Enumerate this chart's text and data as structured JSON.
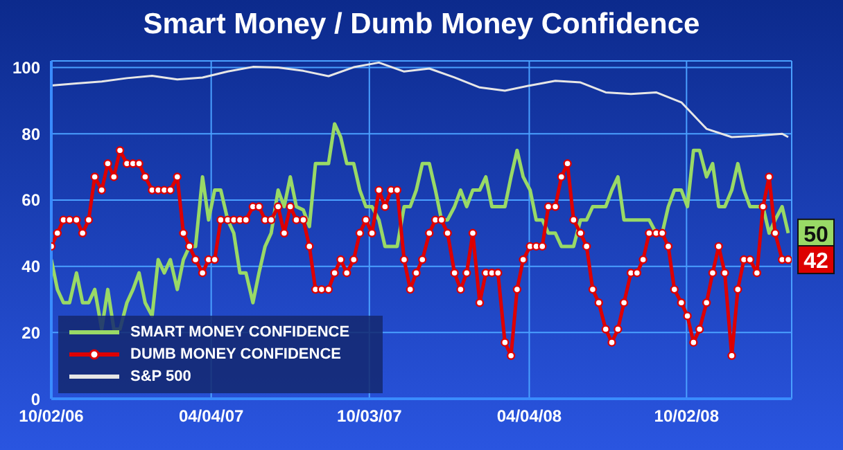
{
  "chart_data": {
    "type": "line",
    "title": "Smart Money / Dumb Money Confidence",
    "x": [
      "2006-10-02",
      "2006-10-09",
      "2006-10-16",
      "2006-10-23",
      "2006-10-31",
      "2006-11-07",
      "2006-11-14",
      "2006-11-21",
      "2006-11-29",
      "2006-12-06",
      "2006-12-13",
      "2006-12-20",
      "2006-12-28",
      "2007-01-04",
      "2007-01-11",
      "2007-01-18",
      "2007-01-26",
      "2007-02-02",
      "2007-02-09",
      "2007-02-16",
      "2007-02-24",
      "2007-03-03",
      "2007-03-10",
      "2007-03-17",
      "2007-03-25",
      "2007-04-01",
      "2007-04-08",
      "2007-04-15",
      "2007-04-23",
      "2007-04-30",
      "2007-05-07",
      "2007-05-14",
      "2007-05-22",
      "2007-05-29",
      "2007-06-05",
      "2007-06-12",
      "2007-06-20",
      "2007-06-27",
      "2007-07-04",
      "2007-07-11",
      "2007-07-19",
      "2007-07-26",
      "2007-08-02",
      "2007-08-09",
      "2007-08-17",
      "2007-08-24",
      "2007-08-31",
      "2007-09-07",
      "2007-09-15",
      "2007-09-22",
      "2007-09-29",
      "2007-10-06",
      "2007-10-14",
      "2007-10-21",
      "2007-10-28",
      "2007-11-04",
      "2007-11-12",
      "2007-11-19",
      "2007-11-26",
      "2007-12-03",
      "2007-12-11",
      "2007-12-18",
      "2007-12-25",
      "2008-01-01",
      "2008-01-09",
      "2008-01-16",
      "2008-01-23",
      "2008-01-30",
      "2008-02-07",
      "2008-02-14",
      "2008-02-21",
      "2008-02-28",
      "2008-03-07",
      "2008-03-14",
      "2008-03-21",
      "2008-03-28",
      "2008-04-05",
      "2008-04-12",
      "2008-04-19",
      "2008-04-26",
      "2008-05-04",
      "2008-05-11",
      "2008-05-18",
      "2008-05-25",
      "2008-06-02",
      "2008-06-09",
      "2008-06-16",
      "2008-06-23",
      "2008-07-01",
      "2008-07-08",
      "2008-07-15",
      "2008-07-22",
      "2008-07-30",
      "2008-08-06",
      "2008-08-13",
      "2008-08-20",
      "2008-08-28",
      "2008-09-04",
      "2008-09-11",
      "2008-09-18",
      "2008-09-26",
      "2008-10-03",
      "2008-10-10",
      "2008-10-17",
      "2008-10-25",
      "2008-11-01",
      "2008-11-08",
      "2008-11-15",
      "2008-11-23",
      "2008-11-30",
      "2008-12-07",
      "2008-12-14",
      "2008-12-22",
      "2008-12-29",
      "2009-01-05",
      "2009-01-12",
      "2009-01-20",
      "2009-01-27"
    ],
    "series": [
      {
        "name": "SMART MONEY CONFIDENCE",
        "color": "#99d966",
        "marker": "none",
        "values": [
          42,
          33,
          29,
          29,
          38,
          29,
          29,
          33,
          21,
          33,
          21,
          21,
          29,
          33,
          38,
          29,
          25,
          42,
          38,
          42,
          33,
          42,
          46,
          46,
          67,
          54,
          63,
          63,
          54,
          50,
          38,
          38,
          29,
          38,
          46,
          50,
          63,
          58,
          67,
          58,
          57,
          52,
          71,
          71,
          71,
          83,
          79,
          71,
          71,
          63,
          58,
          58,
          54,
          46,
          46,
          46,
          58,
          58,
          63,
          71,
          71,
          63,
          54,
          54,
          58,
          63,
          58,
          63,
          63,
          67,
          58,
          58,
          58,
          67,
          75,
          67,
          63,
          54,
          54,
          50,
          50,
          46,
          46,
          46,
          54,
          54,
          58,
          58,
          58,
          63,
          67,
          54,
          54,
          54,
          54,
          54,
          50,
          50,
          58,
          63,
          63,
          58,
          75,
          75,
          67,
          71,
          58,
          58,
          63,
          71,
          63,
          58,
          58,
          58,
          50,
          54,
          58,
          50
        ],
        "value_labels": [
          null,
          null,
          null,
          null,
          null,
          null,
          null,
          null,
          null,
          null,
          null,
          null,
          null,
          null,
          null,
          null,
          null,
          null,
          null,
          null,
          null,
          null,
          null,
          null,
          null,
          null,
          null,
          null,
          null,
          null,
          null,
          null,
          null,
          null,
          null,
          null,
          null,
          null,
          null,
          null,
          null,
          null,
          null,
          null,
          null,
          null,
          null,
          null,
          null,
          null,
          null,
          null,
          null,
          null,
          null,
          null,
          null,
          null,
          null,
          null,
          null,
          null,
          null,
          null,
          null,
          null,
          null,
          null,
          null,
          null,
          null,
          null,
          null,
          null,
          null,
          null,
          null,
          null,
          null,
          null,
          null,
          null,
          null,
          null,
          null,
          null,
          null,
          null,
          null,
          null,
          null,
          null,
          null,
          null,
          null,
          null,
          null,
          null,
          null,
          null,
          null,
          null,
          null,
          null,
          null,
          null,
          null,
          null,
          null,
          null,
          null,
          null,
          null,
          null,
          null,
          null,
          null,
          "50"
        ]
      },
      {
        "name": "DUMB MONEY CONFIDENCE",
        "color": "#dd0000",
        "marker": "circle",
        "values": [
          46,
          50,
          54,
          54,
          54,
          50,
          54,
          67,
          63,
          71,
          67,
          75,
          71,
          71,
          71,
          67,
          63,
          63,
          63,
          63,
          67,
          50,
          46,
          42,
          38,
          42,
          42,
          54,
          54,
          54,
          54,
          54,
          58,
          58,
          54,
          54,
          58,
          50,
          58,
          54,
          54,
          46,
          33,
          33,
          33,
          38,
          42,
          38,
          42,
          50,
          54,
          50,
          63,
          58,
          63,
          63,
          42,
          33,
          38,
          42,
          50,
          54,
          54,
          50,
          38,
          33,
          38,
          50,
          29,
          38,
          38,
          38,
          17,
          13,
          33,
          42,
          46,
          46,
          46,
          58,
          58,
          67,
          71,
          54,
          50,
          46,
          33,
          29,
          21,
          17,
          21,
          29,
          38,
          38,
          42,
          50,
          50,
          50,
          46,
          33,
          29,
          25,
          17,
          21,
          29,
          38,
          46,
          38,
          13,
          33,
          42,
          42,
          38,
          58,
          67,
          50,
          42,
          42
        ],
        "value_labels": [
          null,
          null,
          null,
          null,
          null,
          null,
          null,
          null,
          null,
          null,
          null,
          null,
          null,
          null,
          null,
          null,
          null,
          null,
          null,
          null,
          null,
          null,
          null,
          null,
          null,
          null,
          null,
          null,
          null,
          null,
          null,
          null,
          null,
          null,
          null,
          null,
          null,
          null,
          null,
          null,
          null,
          null,
          null,
          null,
          null,
          null,
          null,
          null,
          null,
          null,
          null,
          null,
          null,
          null,
          null,
          null,
          null,
          null,
          null,
          null,
          null,
          null,
          null,
          null,
          null,
          null,
          null,
          null,
          null,
          null,
          null,
          null,
          null,
          null,
          null,
          null,
          null,
          null,
          null,
          null,
          null,
          null,
          null,
          null,
          null,
          null,
          null,
          null,
          null,
          null,
          null,
          null,
          null,
          null,
          null,
          null,
          null,
          null,
          null,
          null,
          null,
          null,
          null,
          null,
          null,
          null,
          null,
          null,
          null,
          null,
          null,
          null,
          null,
          null,
          null,
          null,
          null,
          "42"
        ]
      },
      {
        "name": "S&P 500",
        "color": "#e6e6e6",
        "marker": "none",
        "x": [
          "2006-10-02",
          "2006-10-31",
          "2006-11-29",
          "2006-12-28",
          "2007-01-26",
          "2007-02-24",
          "2007-03-25",
          "2007-04-23",
          "2007-05-22",
          "2007-06-20",
          "2007-07-19",
          "2007-08-17",
          "2007-09-15",
          "2007-10-14",
          "2007-11-12",
          "2007-12-11",
          "2008-01-09",
          "2008-02-07",
          "2008-03-07",
          "2008-04-05",
          "2008-05-04",
          "2008-06-02",
          "2008-07-01",
          "2008-07-30",
          "2008-08-28",
          "2008-09-26",
          "2008-10-25",
          "2008-11-23",
          "2008-12-22",
          "2009-01-20",
          "2009-01-27"
        ],
        "values": [
          94.6,
          95.2,
          95.8,
          96.8,
          97.5,
          96.4,
          97,
          98.8,
          100.2,
          100,
          99,
          97.4,
          100.1,
          101.5,
          98.8,
          99.7,
          97,
          94,
          93,
          94.6,
          96,
          95.5,
          92.5,
          92,
          92.5,
          89.5,
          81.5,
          79,
          79.4,
          80,
          79
        ]
      }
    ],
    "ylim": [
      0,
      102
    ],
    "yticks": [
      0,
      20,
      40,
      60,
      80,
      100
    ],
    "xlim": [
      "2006-10-02",
      "2009-01-31"
    ],
    "xticks": [
      {
        "value": "2006-10-02",
        "label": "10/02/06"
      },
      {
        "value": "2007-04-04",
        "label": "04/04/07"
      },
      {
        "value": "2007-10-03",
        "label": "10/03/07"
      },
      {
        "value": "2008-04-04",
        "label": "04/04/08"
      },
      {
        "value": "2008-10-02",
        "label": "10/02/08"
      }
    ],
    "grid": true,
    "legend": "bottom left",
    "line_style": "solid"
  }
}
